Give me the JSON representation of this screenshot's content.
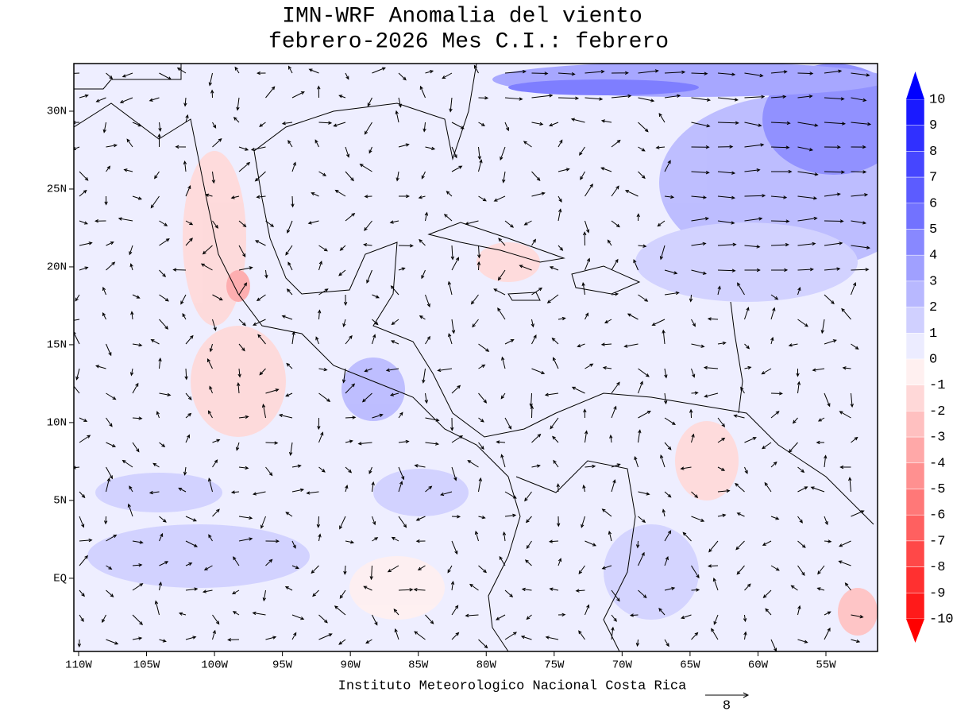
{
  "chart_data": {
    "type": "wind-anomaly-map",
    "title": "IMN-WRF Anomalia del viento",
    "subtitle": "febrero-2026 Mes C.I.: febrero",
    "xlim": [
      -110.35,
      -51.2
    ],
    "ylim": [
      -4.7,
      33.06
    ],
    "xticks": [
      {
        "value": -110,
        "label": "110W"
      },
      {
        "value": -105,
        "label": "105W"
      },
      {
        "value": -100,
        "label": "100W"
      },
      {
        "value": -95,
        "label": "95W"
      },
      {
        "value": -90,
        "label": "90W"
      },
      {
        "value": -85,
        "label": "85W"
      },
      {
        "value": -80,
        "label": "80W"
      },
      {
        "value": -75,
        "label": "75W"
      },
      {
        "value": -70,
        "label": "70W"
      },
      {
        "value": -65,
        "label": "65W"
      },
      {
        "value": -60,
        "label": "60W"
      },
      {
        "value": -55,
        "label": "55W"
      }
    ],
    "yticks": [
      {
        "value": 0,
        "label": "EQ"
      },
      {
        "value": 5,
        "label": "5N"
      },
      {
        "value": 10,
        "label": "10N"
      },
      {
        "value": 15,
        "label": "15N"
      },
      {
        "value": 20,
        "label": "20N"
      },
      {
        "value": 25,
        "label": "25N"
      },
      {
        "value": 30,
        "label": "30N"
      }
    ],
    "colorbar": {
      "levels": [
        10,
        9,
        8,
        7,
        6,
        5,
        4,
        3,
        2,
        1,
        0,
        -1,
        -2,
        -3,
        -4,
        -5,
        -6,
        -7,
        -8,
        -9,
        -10
      ],
      "colors": [
        "#1a1aff",
        "#3030ff",
        "#4646ff",
        "#5c5cff",
        "#7272ff",
        "#8888ff",
        "#a0a0ff",
        "#b8b8ff",
        "#d0d0ff",
        "#ececff",
        "#fff0f0",
        "#ffd8d8",
        "#ffc0c0",
        "#ffa8a8",
        "#ff9090",
        "#ff7878",
        "#ff6060",
        "#ff4848",
        "#ff3030",
        "#ff1a1a"
      ],
      "over_color": "#0000ff",
      "under_color": "#ff0000"
    },
    "credit": "Instituto Meteorologico Nacional Costa Rica",
    "reference_vector": 8
  }
}
